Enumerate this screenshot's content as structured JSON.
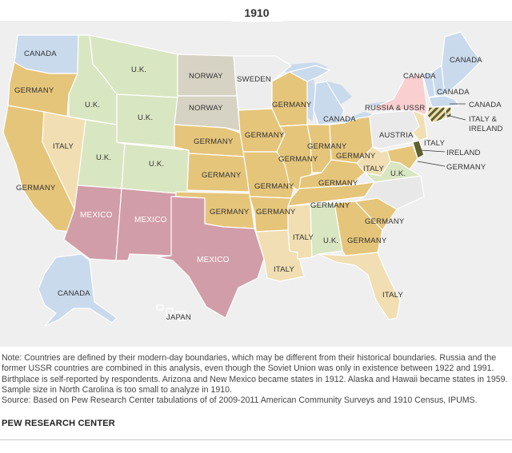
{
  "year": "1910",
  "colors": {
    "Germany": "#e5c57a",
    "U.K.": "#d9e6c2",
    "Mexico": "#d19da8",
    "Canada": "#c9daed",
    "Italy": "#f1deb2",
    "Norway": "#d7d3c4",
    "Sweden": "#ededee",
    "Russia & USSR": "#f9cfd0",
    "Austria": "#eaeaea",
    "Ireland": "#5e612f",
    "Japan": "#f0f0f0",
    "NoData": "#e8e8e8",
    "Water": "#c9daed"
  },
  "labels": {
    "wa": "CANADA",
    "or": "GERMANY",
    "ca": "GERMANY",
    "nv": "ITALY",
    "id": "U.K.",
    "mt": "U.K.",
    "wy": "U.K.",
    "ut": "U.K.",
    "co": "U.K.",
    "nd": "NORWAY",
    "sd": "NORWAY",
    "mn": "SWEDEN",
    "wi": "GERMANY",
    "mi": "CANADA",
    "ne": "GERMANY",
    "ia": "GERMANY",
    "ks": "GERMANY",
    "mo": "GERMANY",
    "il": "GERMANY",
    "in": "GERMANY",
    "oh": "GERMANY",
    "pa": "AUSTRIA",
    "ny": "RUSSIA & USSR",
    "ok": "GERMANY",
    "ar": "GERMANY",
    "ky": "GERMANY",
    "tn": "GERMANY",
    "wv": "ITALY",
    "va": "U.K.",
    "nj": "ITALY",
    "me": "CANADA",
    "vt": "CANADA",
    "nh": "CANADA",
    "ma": "CANADA",
    "ri_ct": "ITALY & IRELAND",
    "de": "IRELAND",
    "md": "GERMANY",
    "la": "ITALY",
    "ms": "ITALY",
    "al": "U.K.",
    "ga": "GERMANY",
    "sc": "GERMANY",
    "fl": "ITALY",
    "az": "MEXICO",
    "nm": "MEXICO",
    "tx": "MEXICO",
    "ak": "CANADA",
    "hi": "JAPAN"
  },
  "note": "Note: Countries are defined by their modern-day boundaries, which may be different from their historical boundaries. Russia and the former USSR countries are combined in this analysis, even though the Soviet Union was only in existence between 1922 and 1991. Birthplace is self-reported by respondents. Arizona and New Mexico became states in 1912. Alaska and Hawaii became states in 1959. Sample size in North Carolina is too small to analyze in 1910.",
  "source": "Source: Based on Pew Research Center tabulations of of 2009-2011 American Community Surveys and 1910 Census, IPUMS.",
  "credit": "PEW RESEARCH CENTER"
}
